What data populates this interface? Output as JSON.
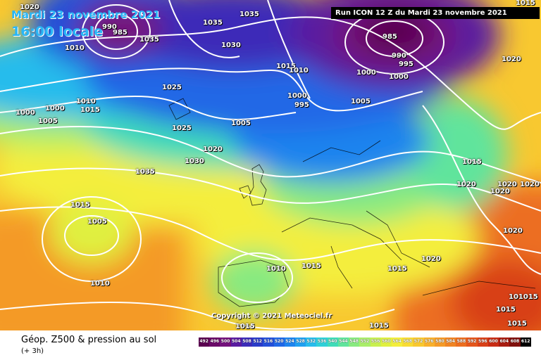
{
  "header": {
    "date_label": "Mardi 23 novembre 2021",
    "time_label": "16:00 locale",
    "run_label": "Run ICON 12 Z du Mardi 23 novembre 2021"
  },
  "copyright": "Copyright © 2021 Meteociel.fr",
  "footer": {
    "title": "Géop. Z500 & pression au sol",
    "subtitle": "(+ 3h)"
  },
  "legend": {
    "values": [
      "492",
      "496",
      "500",
      "504",
      "508",
      "512",
      "516",
      "520",
      "524",
      "528",
      "532",
      "536",
      "540",
      "544",
      "548",
      "552",
      "556",
      "560",
      "564",
      "568",
      "572",
      "576",
      "580",
      "584",
      "588",
      "592",
      "596",
      "600",
      "604",
      "608",
      "612"
    ],
    "colors": [
      "#5a0050",
      "#6a0a68",
      "#74127c",
      "#5a1ca0",
      "#3c2cb8",
      "#2a3cc8",
      "#2450d8",
      "#2068e6",
      "#1e84ee",
      "#20a0f0",
      "#28bcec",
      "#30d0d8",
      "#40dcb8",
      "#60e49c",
      "#88ea80",
      "#aaee6a",
      "#c8f050",
      "#e0f040",
      "#f4ee3c",
      "#f8dc34",
      "#f8c830",
      "#f8b02c",
      "#f49a28",
      "#f08424",
      "#ec6e20",
      "#e4561c",
      "#d84018",
      "#c82c14",
      "#a81c10",
      "#80100c",
      "#000000"
    ]
  },
  "isobars": [
    {
      "id": "1020-a",
      "text": "1020"
    },
    {
      "id": "990-a",
      "text": "990"
    },
    {
      "id": "985-a",
      "text": "985"
    },
    {
      "id": "1010-a",
      "text": "1010"
    },
    {
      "id": "1035-a",
      "text": "1035"
    },
    {
      "id": "1035-b",
      "text": "1035"
    },
    {
      "id": "1030-a",
      "text": "1030"
    },
    {
      "id": "1035-c",
      "text": "1035"
    },
    {
      "id": "1015-a",
      "text": "1015"
    },
    {
      "id": "1010-b",
      "text": "1010"
    },
    {
      "id": "985-b",
      "text": "985"
    },
    {
      "id": "990-b",
      "text": "990"
    },
    {
      "id": "995-a",
      "text": "995"
    },
    {
      "id": "1000-a",
      "text": "1000"
    },
    {
      "id": "1000-b",
      "text": "1000"
    },
    {
      "id": "1020-b",
      "text": "1020"
    },
    {
      "id": "1025-a",
      "text": "1025"
    },
    {
      "id": "1000-c",
      "text": "1000"
    },
    {
      "id": "995-b",
      "text": "995"
    },
    {
      "id": "1005-a",
      "text": "1005"
    },
    {
      "id": "1010-c",
      "text": "1010"
    },
    {
      "id": "1015-b",
      "text": "1015"
    },
    {
      "id": "1000-d",
      "text": "1000"
    },
    {
      "id": "1000-e",
      "text": "1000"
    },
    {
      "id": "1005-b",
      "text": "1005"
    },
    {
      "id": "1025-b",
      "text": "1025"
    },
    {
      "id": "1005-c",
      "text": "1005"
    },
    {
      "id": "1020-c",
      "text": "1020"
    },
    {
      "id": "1030-b",
      "text": "1030"
    },
    {
      "id": "1035-d",
      "text": "1035"
    },
    {
      "id": "1015-c",
      "text": "1015"
    },
    {
      "id": "1005-d",
      "text": "1005"
    },
    {
      "id": "1010-d",
      "text": "1010"
    },
    {
      "id": "1010-e",
      "text": "1010"
    },
    {
      "id": "1015-d",
      "text": "1015"
    },
    {
      "id": "1015-e",
      "text": "1015"
    },
    {
      "id": "1015-f",
      "text": "1015"
    },
    {
      "id": "1020-d",
      "text": "1020"
    },
    {
      "id": "1020-e",
      "text": "1020"
    },
    {
      "id": "1020-f",
      "text": "1020"
    },
    {
      "id": "1020-g",
      "text": "1020"
    },
    {
      "id": "1020-h",
      "text": "1020"
    },
    {
      "id": "1020-i",
      "text": "1020"
    },
    {
      "id": "1015-g",
      "text": "1015"
    },
    {
      "id": "101015",
      "text": "101015"
    },
    {
      "id": "1015-h",
      "text": "1015"
    },
    {
      "id": "1015-i",
      "text": "1015"
    },
    {
      "id": "1015-j",
      "text": "1015"
    },
    {
      "id": "1015-k",
      "text": "1015"
    }
  ]
}
